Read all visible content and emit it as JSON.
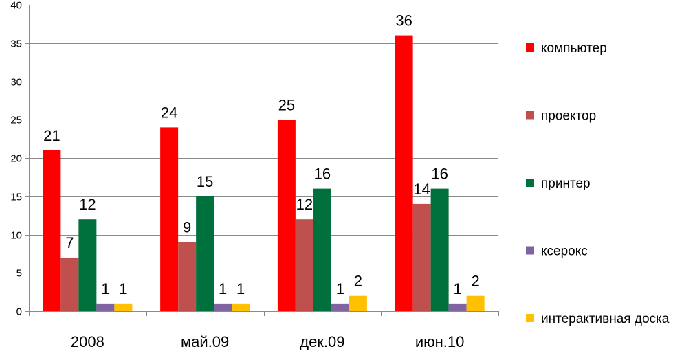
{
  "chart_data": {
    "type": "bar",
    "title": "",
    "xlabel": "",
    "ylabel": "",
    "categories": [
      "2008",
      "май.09",
      "дек.09",
      "июн.10"
    ],
    "ylim": [
      0,
      40
    ],
    "y_ticks": [
      0,
      5,
      10,
      15,
      20,
      25,
      30,
      35,
      40
    ],
    "grid": true,
    "legend_position": "right",
    "data_labels": true,
    "series": [
      {
        "name": "компьютер",
        "values": [
          21,
          24,
          25,
          36
        ],
        "color": "#ff0000"
      },
      {
        "name": "проектор",
        "values": [
          7,
          9,
          12,
          14
        ],
        "color": "#c0504d"
      },
      {
        "name": "принтер",
        "values": [
          12,
          15,
          16,
          16
        ],
        "color": "#00703c"
      },
      {
        "name": "ксерокс",
        "values": [
          1,
          1,
          1,
          1
        ],
        "color": "#8064a2"
      },
      {
        "name": "интерактивная доска",
        "values": [
          1,
          1,
          2,
          2
        ],
        "color": "#ffc000"
      }
    ]
  }
}
